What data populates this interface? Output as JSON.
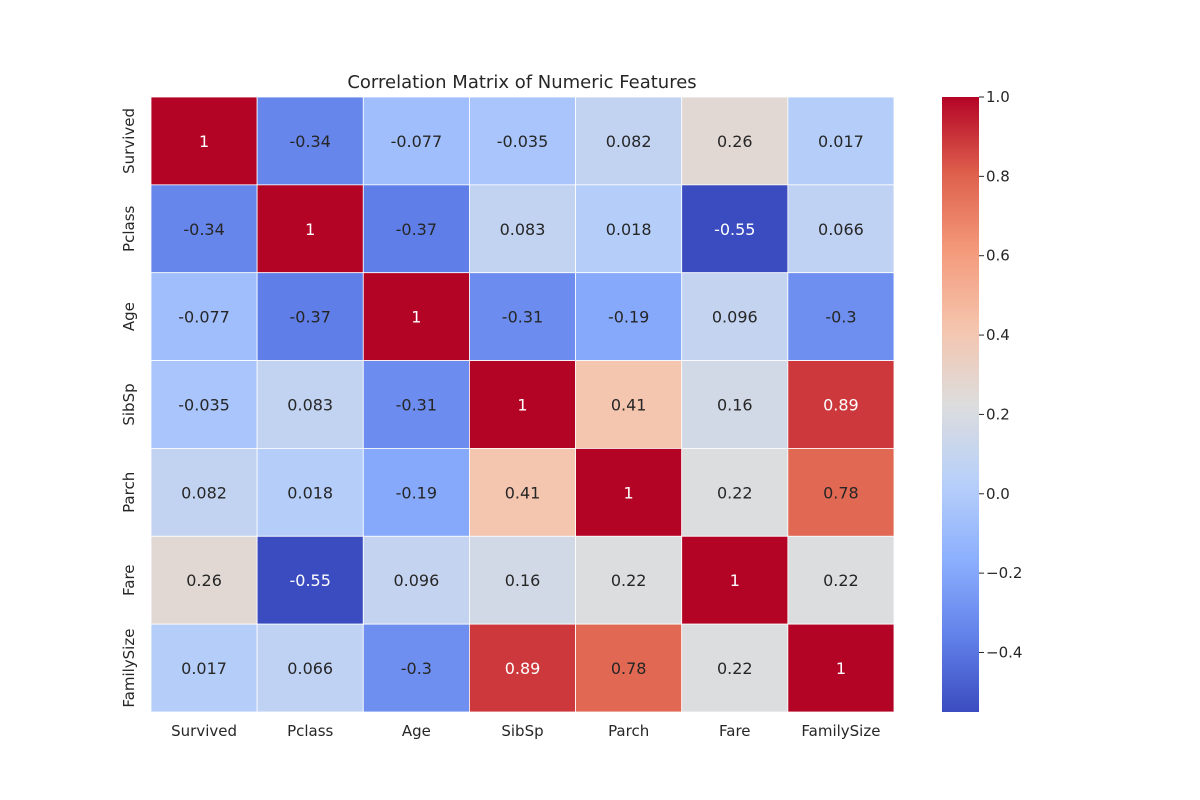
{
  "chart_data": {
    "type": "heatmap",
    "title": "Correlation Matrix of Numeric Features",
    "xlabel": "",
    "ylabel": "",
    "x_categories": [
      "Survived",
      "Pclass",
      "Age",
      "SibSp",
      "Parch",
      "Fare",
      "FamilySize"
    ],
    "y_categories": [
      "Survived",
      "Pclass",
      "Age",
      "SibSp",
      "Parch",
      "Fare",
      "FamilySize"
    ],
    "values": [
      [
        1,
        -0.34,
        -0.077,
        -0.035,
        0.082,
        0.26,
        0.017
      ],
      [
        -0.34,
        1,
        -0.37,
        0.083,
        0.018,
        -0.55,
        0.066
      ],
      [
        -0.077,
        -0.37,
        1,
        -0.31,
        -0.19,
        0.096,
        -0.3
      ],
      [
        -0.035,
        0.083,
        -0.31,
        1,
        0.41,
        0.16,
        0.89
      ],
      [
        0.082,
        0.018,
        -0.19,
        0.41,
        1,
        0.22,
        0.78
      ],
      [
        0.26,
        -0.55,
        0.096,
        0.16,
        0.22,
        1,
        0.22
      ],
      [
        0.017,
        0.066,
        -0.3,
        0.89,
        0.78,
        0.22,
        1
      ]
    ],
    "labels": [
      [
        "1",
        "-0.34",
        "-0.077",
        "-0.035",
        "0.082",
        "0.26",
        "0.017"
      ],
      [
        "-0.34",
        "1",
        "-0.37",
        "0.083",
        "0.018",
        "-0.55",
        "0.066"
      ],
      [
        "-0.077",
        "-0.37",
        "1",
        "-0.31",
        "-0.19",
        "0.096",
        "-0.3"
      ],
      [
        "-0.035",
        "0.083",
        "-0.31",
        "1",
        "0.41",
        "0.16",
        "0.89"
      ],
      [
        "0.082",
        "0.018",
        "-0.19",
        "0.41",
        "1",
        "0.22",
        "0.78"
      ],
      [
        "0.26",
        "-0.55",
        "0.096",
        "0.16",
        "0.22",
        "1",
        "0.22"
      ],
      [
        "0.017",
        "0.066",
        "-0.3",
        "0.89",
        "0.78",
        "0.22",
        "1"
      ]
    ],
    "colormap": "coolwarm",
    "vmin": -0.55,
    "vmax": 1.0,
    "colorbar": {
      "ticks": [
        1.0,
        0.8,
        0.6,
        0.4,
        0.2,
        0.0,
        -0.2,
        -0.4
      ],
      "tick_labels": [
        "1.0",
        "0.8",
        "0.6",
        "0.4",
        "0.2",
        "0.0",
        "−0.2",
        "−0.4"
      ]
    },
    "grid": true,
    "legend": "colorbar-right"
  }
}
